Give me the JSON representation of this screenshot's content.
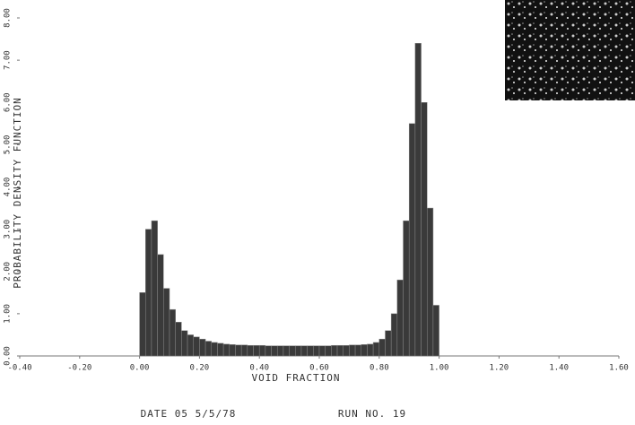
{
  "chart_data": {
    "type": "histogram",
    "x_label": "VOID FRACTION",
    "y_label": "PROBABILITY DENSITY FUNCTION",
    "annotations": [
      "DATE 05 5/5/78",
      "RUN NO. 19"
    ],
    "color": "#3a3a3a",
    "bins": [
      0,
      0.02,
      0.04,
      0.06,
      0.08,
      0.1,
      0.12,
      0.14,
      0.16,
      0.18,
      0.2,
      0.22,
      0.24,
      0.26,
      0.28,
      0.3,
      0.32,
      0.34,
      0.36,
      0.38,
      0.4,
      0.42,
      0.44,
      0.46,
      0.48,
      0.5,
      0.52,
      0.54,
      0.56,
      0.58,
      0.6,
      0.62,
      0.64,
      0.66,
      0.68,
      0.7,
      0.72,
      0.74,
      0.76,
      0.78,
      0.8,
      0.82,
      0.84,
      0.86,
      0.88,
      0.9,
      0.92,
      0.94,
      0.96,
      0.98,
      1.0
    ],
    "values": [
      1.5,
      3.0,
      3.2,
      2.4,
      1.6,
      1.1,
      0.8,
      0.6,
      0.5,
      0.45,
      0.4,
      0.35,
      0.32,
      0.3,
      0.28,
      0.27,
      0.26,
      0.26,
      0.25,
      0.25,
      0.25,
      0.24,
      0.24,
      0.24,
      0.24,
      0.24,
      0.24,
      0.24,
      0.24,
      0.24,
      0.24,
      0.24,
      0.25,
      0.25,
      0.25,
      0.26,
      0.26,
      0.27,
      0.28,
      0.32,
      0.4,
      0.6,
      1.0,
      1.8,
      3.2,
      5.5,
      7.4,
      6.0,
      3.5,
      1.2
    ],
    "xlim": [
      -0.4,
      1.6
    ],
    "xticks": [
      {
        "value": -0.4,
        "label": "-0.40"
      },
      {
        "value": -0.2,
        "label": "-0.20"
      },
      {
        "value": 0,
        "label": "0.00"
      },
      {
        "value": 0.2,
        "label": "0.20"
      },
      {
        "value": 0.4,
        "label": "0.40"
      },
      {
        "value": 0.6,
        "label": "0.60"
      },
      {
        "value": 0.8,
        "label": "0.80"
      },
      {
        "value": 1.0,
        "label": "1.00"
      },
      {
        "value": 1.2,
        "label": "1.20"
      },
      {
        "value": 1.4,
        "label": "1.40"
      },
      {
        "value": 1.6,
        "label": "1.60"
      }
    ],
    "ylim": [
      0,
      8
    ],
    "yticks": [
      {
        "value": 0,
        "label": "0.00"
      },
      {
        "value": 1,
        "label": "1.00"
      },
      {
        "value": 2,
        "label": "2.00"
      },
      {
        "value": 3,
        "label": "3.00"
      },
      {
        "value": 4,
        "label": "4.00"
      },
      {
        "value": 5,
        "label": "5.00"
      },
      {
        "value": 6,
        "label": "6.00"
      },
      {
        "value": 7,
        "label": "7.00"
      },
      {
        "value": 8,
        "label": "8.00"
      }
    ]
  }
}
